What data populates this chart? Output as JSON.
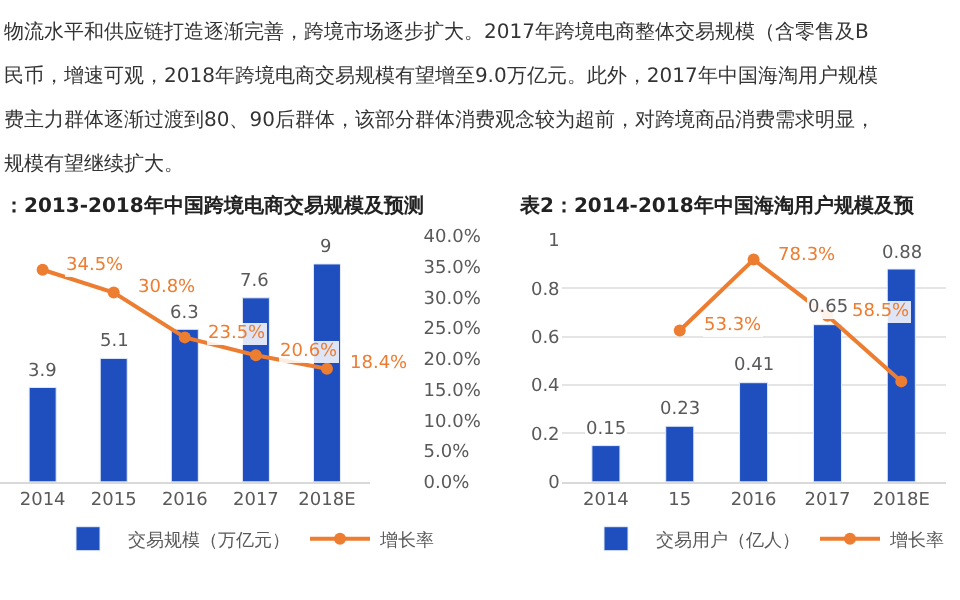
{
  "chart_data": [
    {
      "type": "other",
      "annotations": [
        "物流水平和供应链打造逐渐完善，跨境市场逐步扩大。2017年跨境电商整体交易规模（含零售及B",
        "民币，增速可观，2018年跨境电商交易规模有望增至9.0万亿元。此外，2017年中国海淘用户规模",
        "费主力群体逐渐过渡到80、90后群体，该部分群体消费观念较为超前，对跨境商品消费需求明显，",
        "规模有望继续扩大。"
      ]
    },
    {
      "type": "bar",
      "title": "：2013-2018年中国跨境电商交易规模及预测",
      "categories": [
        "2014",
        "2015",
        "2016",
        "2017",
        "2018E"
      ],
      "y2lim": [
        0,
        40
      ],
      "y2ticks": [
        {
          "value": 0,
          "label": "0.0%"
        },
        {
          "value": 5,
          "label": "5.0%"
        },
        {
          "value": 10,
          "label": "10.0%"
        },
        {
          "value": 15,
          "label": "15.0%"
        },
        {
          "value": 20,
          "label": "20.0%"
        },
        {
          "value": 25,
          "label": "25.0%"
        },
        {
          "value": 30,
          "label": "30.0%"
        },
        {
          "value": 35,
          "label": "35.0%"
        },
        {
          "value": 40,
          "label": "40.0%"
        }
      ],
      "legend": "bottom",
      "marker": "circle",
      "grid": false,
      "series": [
        {
          "name": "交易规模（万亿元）",
          "type": "bar",
          "color": "#1f4fbf",
          "values": [
            3.9,
            5.1,
            6.3,
            7.6,
            9
          ],
          "value_labels": [
            "3.9",
            "5.1",
            "6.3",
            "7.6",
            "9"
          ]
        },
        {
          "name": "增长率",
          "type": "line",
          "axis": "y2",
          "color": "#ed7d31",
          "values": [
            34.5,
            30.8,
            23.5,
            20.6,
            18.4
          ],
          "value_labels": [
            "34.5%",
            "30.8%",
            "23.5%",
            "20.6%",
            "18.4%"
          ]
        }
      ]
    },
    {
      "type": "bar",
      "title": "表2：2014-2018年中国海淘用户规模及预",
      "categories": [
        "2014",
        "15",
        "2016",
        "2017",
        "2018E"
      ],
      "ylim": [
        0,
        1
      ],
      "yticks": [
        0,
        0.2,
        0.4,
        0.6,
        0.8,
        1
      ],
      "legend": "bottom",
      "marker": "circle",
      "grid": "y",
      "series": [
        {
          "name": "交易用户（亿人）",
          "type": "bar",
          "color": "#1f4fbf",
          "values": [
            0.15,
            0.23,
            0.41,
            0.65,
            0.88
          ],
          "value_labels": [
            "0.15",
            "0.23",
            "0.41",
            "0.65",
            "0.88"
          ]
        },
        {
          "name": "增长率",
          "type": "line",
          "axis": "y2",
          "color": "#ed7d31",
          "values": [
            null,
            53.3,
            78.3,
            58.5,
            35.4
          ],
          "value_labels": [
            null,
            "53.3%",
            "78.3%",
            "58.5%",
            null
          ]
        }
      ]
    }
  ]
}
